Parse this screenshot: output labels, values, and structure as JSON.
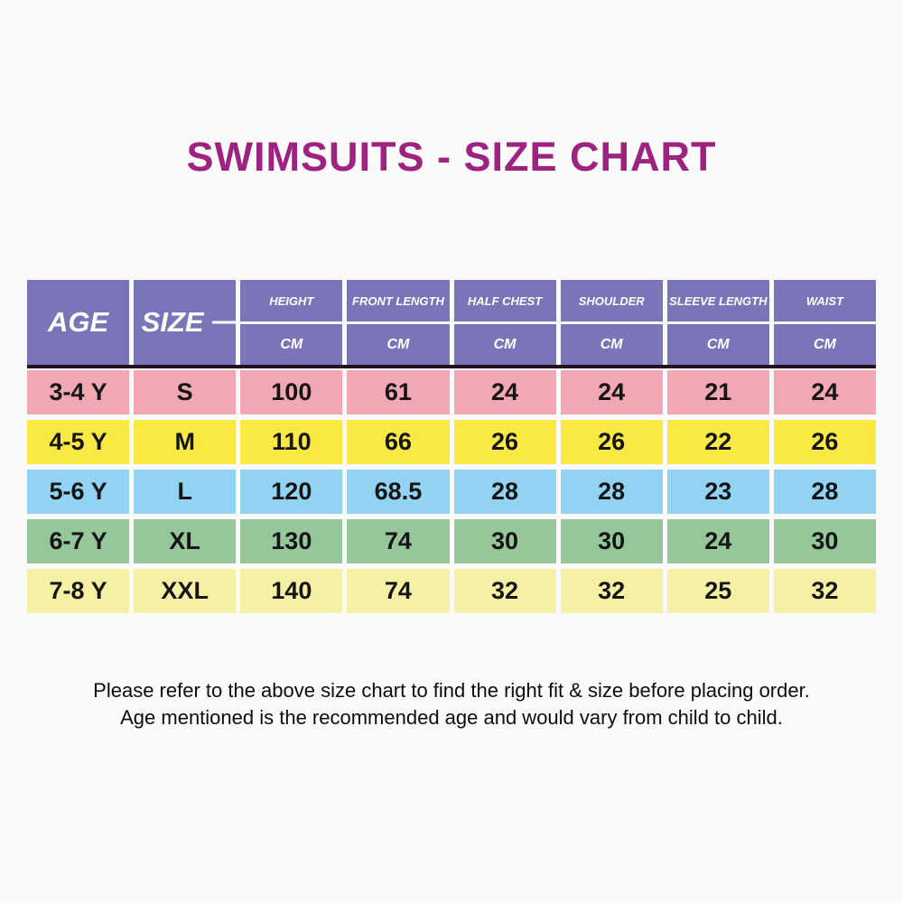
{
  "title": {
    "text": "SWIMSUITS - SIZE CHART",
    "color": "#9E2280"
  },
  "colors": {
    "header_bg": "#7A74B9",
    "header_text": "#FFFFFF",
    "divider_line": "#20121F",
    "page_bg": "#FBFAFB"
  },
  "chart_data": {
    "type": "table",
    "title": "SWIMSUITS - SIZE CHART",
    "corner_headers": [
      "AGE",
      "SIZE"
    ],
    "measure_headers": [
      "HEIGHT",
      "FRONT LENGTH",
      "HALF CHEST",
      "SHOULDER",
      "SLEEVE LENGTH",
      "WAIST"
    ],
    "unit_row": [
      "CM",
      "CM",
      "CM",
      "CM",
      "CM",
      "CM"
    ],
    "rows": [
      {
        "age": "3-4 Y",
        "size": "S",
        "height": "100",
        "front_length": "61",
        "half_chest": "24",
        "shoulder": "24",
        "sleeve_length": "21",
        "waist": "24",
        "bg": "#F2A7B3"
      },
      {
        "age": "4-5 Y",
        "size": "M",
        "height": "110",
        "front_length": "66",
        "half_chest": "26",
        "shoulder": "26",
        "sleeve_length": "22",
        "waist": "26",
        "bg": "#FAE943"
      },
      {
        "age": "5-6 Y",
        "size": "L",
        "height": "120",
        "front_length": "68.5",
        "half_chest": "28",
        "shoulder": "28",
        "sleeve_length": "23",
        "waist": "28",
        "bg": "#92D3F4"
      },
      {
        "age": "6-7 Y",
        "size": "XL",
        "height": "130",
        "front_length": "74",
        "half_chest": "30",
        "shoulder": "30",
        "sleeve_length": "24",
        "waist": "30",
        "bg": "#95C79B"
      },
      {
        "age": "7-8 Y",
        "size": "XXL",
        "height": "140",
        "front_length": "74",
        "half_chest": "32",
        "shoulder": "32",
        "sleeve_length": "25",
        "waist": "32",
        "bg": "#F6F0A4"
      }
    ]
  },
  "footer": {
    "line1": "Please refer to the above size chart to find the right fit & size before placing order.",
    "line2": "Age mentioned is the recommended age and would vary from child to child."
  }
}
